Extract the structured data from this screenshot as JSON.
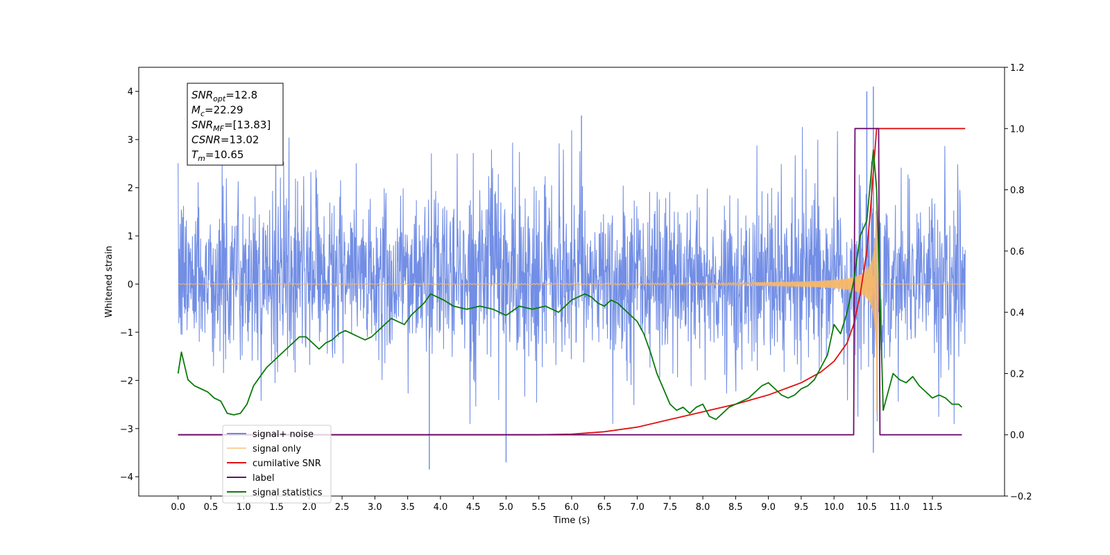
{
  "chart_data": {
    "type": "line",
    "title": "",
    "xlabel": "Time (s)",
    "ylabel_left": "Whitened strain",
    "ylabel_right": "",
    "xlim": [
      -0.6,
      12.6
    ],
    "ylim_left": [
      -4.4,
      4.5
    ],
    "ylim_right": [
      -0.2,
      1.2
    ],
    "x_ticks": [
      0.0,
      0.5,
      1.0,
      1.5,
      2.0,
      2.5,
      3.0,
      3.5,
      4.0,
      4.5,
      5.0,
      5.5,
      6.0,
      6.5,
      7.0,
      7.5,
      8.0,
      8.5,
      9.0,
      9.5,
      10.0,
      10.5,
      11.0,
      11.5
    ],
    "x_tick_labels": [
      "0.0",
      "0.5",
      "1.0",
      "1.5",
      "2.0",
      "2.5",
      "3.0",
      "3.5",
      "4.0",
      "4.5",
      "5.0",
      "5.5",
      "6.0",
      "6.5",
      "7.0",
      "7.5",
      "8.0",
      "8.5",
      "9.0",
      "9.5",
      "10.0",
      "10.5",
      "11.0",
      "11.5"
    ],
    "y_ticks_left": [
      -4,
      -3,
      -2,
      -1,
      0,
      1,
      2,
      3,
      4
    ],
    "y_tick_labels_left": [
      "−4",
      "−3",
      "−2",
      "−1",
      "0",
      "1",
      "2",
      "3",
      "4"
    ],
    "y_ticks_right": [
      -0.2,
      0.0,
      0.2,
      0.4,
      0.6,
      0.8,
      1.0,
      1.2
    ],
    "y_tick_labels_right": [
      "−0.2",
      "0.0",
      "0.2",
      "0.4",
      "0.6",
      "0.8",
      "1.0",
      "1.2"
    ],
    "grid": false,
    "legend_position": "lower-left",
    "annotation": {
      "lines": [
        {
          "sym": "SNR",
          "sub": "opt",
          "val": "=12.8"
        },
        {
          "sym": "M",
          "sub": "c",
          "val": "=22.29"
        },
        {
          "sym": "SNR",
          "sub": "MF",
          "val": "=[13.83]"
        },
        {
          "sym": "CSNR",
          "sub": "",
          "val": "=13.02"
        },
        {
          "sym": "T",
          "sub": "m",
          "val": "=10.65"
        }
      ]
    },
    "series": [
      {
        "name": "signal+ noise",
        "axis": "left",
        "color": "#6a88e4",
        "kind": "noise",
        "x_range": [
          0.0,
          12.0
        ],
        "typical_envelope": [
          -2.2,
          2.6
        ],
        "extreme_peaks": [
          {
            "x": 3.83,
            "y": -3.85
          },
          {
            "x": 5.0,
            "y": -3.7
          },
          {
            "x": 6.15,
            "y": 3.5
          },
          {
            "x": 10.5,
            "y": 4.0
          },
          {
            "x": 10.6,
            "y": 4.1
          },
          {
            "x": 10.6,
            "y": -3.5
          }
        ]
      },
      {
        "name": "signal only",
        "axis": "left",
        "color": "#f5b86c",
        "kind": "chirp",
        "x_range": [
          0.0,
          12.0
        ],
        "merger_time": 10.65,
        "peak_amplitude": 3.3
      },
      {
        "name": "cumilative SNR",
        "axis": "right",
        "color": "#e01010",
        "x": [
          0.0,
          5.5,
          6.0,
          6.5,
          7.0,
          7.5,
          8.0,
          8.5,
          9.0,
          9.5,
          9.8,
          10.0,
          10.2,
          10.3,
          10.4,
          10.5,
          10.55,
          10.6,
          10.65,
          12.0
        ],
        "values": [
          0.0,
          0.0,
          0.002,
          0.01,
          0.025,
          0.05,
          0.075,
          0.1,
          0.13,
          0.17,
          0.205,
          0.24,
          0.3,
          0.36,
          0.46,
          0.6,
          0.72,
          0.86,
          1.0,
          1.0
        ]
      },
      {
        "name": "label",
        "axis": "right",
        "color": "#6a0d6e",
        "x": [
          0.0,
          10.3,
          10.32,
          10.68,
          10.7,
          11.95
        ],
        "values": [
          0.0,
          0.0,
          1.0,
          1.0,
          0.0,
          0.0
        ]
      },
      {
        "name": "signal statistics",
        "axis": "right",
        "color": "#0a7a0a",
        "x": [
          0.0,
          0.05,
          0.15,
          0.25,
          0.35,
          0.45,
          0.55,
          0.65,
          0.75,
          0.85,
          0.95,
          1.05,
          1.15,
          1.25,
          1.35,
          1.45,
          1.55,
          1.65,
          1.75,
          1.85,
          1.95,
          2.05,
          2.15,
          2.25,
          2.35,
          2.45,
          2.55,
          2.65,
          2.75,
          2.85,
          2.95,
          3.05,
          3.15,
          3.25,
          3.35,
          3.45,
          3.55,
          3.65,
          3.75,
          3.85,
          3.95,
          4.05,
          4.2,
          4.4,
          4.6,
          4.8,
          5.0,
          5.2,
          5.4,
          5.6,
          5.8,
          6.0,
          6.1,
          6.2,
          6.3,
          6.4,
          6.5,
          6.6,
          6.7,
          6.8,
          6.9,
          7.0,
          7.1,
          7.2,
          7.3,
          7.4,
          7.5,
          7.6,
          7.7,
          7.8,
          7.9,
          8.0,
          8.1,
          8.2,
          8.3,
          8.4,
          8.5,
          8.6,
          8.7,
          8.8,
          8.9,
          9.0,
          9.1,
          9.2,
          9.3,
          9.4,
          9.5,
          9.6,
          9.7,
          9.8,
          9.9,
          10.0,
          10.1,
          10.2,
          10.3,
          10.4,
          10.5,
          10.6,
          10.65,
          10.7,
          10.75,
          10.8,
          10.9,
          11.0,
          11.1,
          11.2,
          11.3,
          11.4,
          11.5,
          11.6,
          11.7,
          11.8,
          11.9,
          11.95
        ],
        "values": [
          0.2,
          0.27,
          0.18,
          0.16,
          0.15,
          0.14,
          0.12,
          0.11,
          0.07,
          0.065,
          0.07,
          0.1,
          0.16,
          0.19,
          0.22,
          0.24,
          0.26,
          0.28,
          0.3,
          0.32,
          0.32,
          0.3,
          0.28,
          0.3,
          0.31,
          0.33,
          0.34,
          0.33,
          0.32,
          0.31,
          0.32,
          0.34,
          0.36,
          0.38,
          0.37,
          0.36,
          0.39,
          0.41,
          0.43,
          0.46,
          0.45,
          0.44,
          0.42,
          0.41,
          0.42,
          0.41,
          0.39,
          0.42,
          0.41,
          0.42,
          0.4,
          0.44,
          0.45,
          0.46,
          0.45,
          0.43,
          0.42,
          0.44,
          0.43,
          0.41,
          0.39,
          0.37,
          0.33,
          0.27,
          0.2,
          0.15,
          0.1,
          0.08,
          0.09,
          0.07,
          0.09,
          0.1,
          0.06,
          0.05,
          0.07,
          0.09,
          0.1,
          0.11,
          0.12,
          0.14,
          0.16,
          0.17,
          0.15,
          0.13,
          0.12,
          0.13,
          0.15,
          0.16,
          0.18,
          0.22,
          0.26,
          0.36,
          0.33,
          0.4,
          0.5,
          0.65,
          0.7,
          0.93,
          0.8,
          0.45,
          0.08,
          0.12,
          0.2,
          0.18,
          0.17,
          0.19,
          0.16,
          0.14,
          0.12,
          0.13,
          0.12,
          0.1,
          0.1,
          0.09
        ]
      }
    ]
  }
}
